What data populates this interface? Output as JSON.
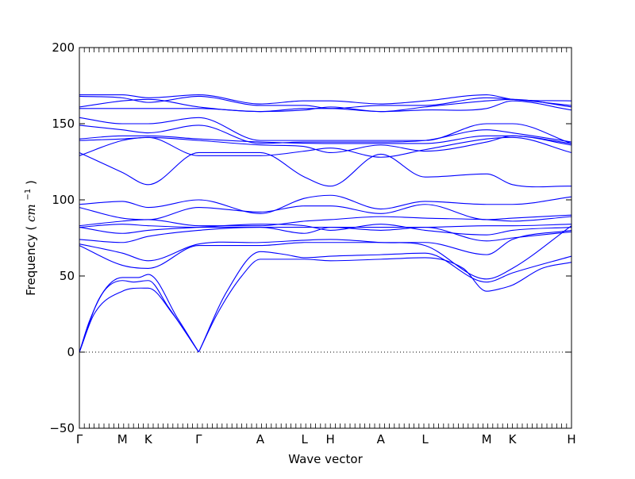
{
  "chart_data": {
    "type": "line",
    "title": "",
    "xlabel": "Wave vector",
    "ylabel": "Frequency",
    "ylabel_unit": "cm",
    "ylabel_unit_exponent": "−1",
    "ylim": [
      -50,
      200
    ],
    "yticks": [
      -50,
      0,
      50,
      100,
      150,
      200
    ],
    "zero_line": "dotted",
    "grid": false,
    "legend": "none",
    "line_color": "#0000ff",
    "x_labels": [
      {
        "label": "Γ",
        "x": 0.0
      },
      {
        "label": "M",
        "x": 0.0875
      },
      {
        "label": "K",
        "x": 0.14
      },
      {
        "label": "Γ",
        "x": 0.2425
      },
      {
        "label": "A",
        "x": 0.3675
      },
      {
        "label": "L",
        "x": 0.4575
      },
      {
        "label": "H",
        "x": 0.51
      },
      {
        "label": "A",
        "x": 0.6125
      },
      {
        "label": "L",
        "x": 0.7025
      },
      {
        "label": "M",
        "x": 0.8275
      },
      {
        "label": "K",
        "x": 0.88
      },
      {
        "label": "H",
        "x": 1.0
      }
    ],
    "series": [
      {
        "values": [
          [
            0,
            0
          ],
          [
            0.02,
            20
          ],
          [
            0.05,
            40
          ],
          [
            0.0875,
            47
          ],
          [
            0.11,
            46
          ],
          [
            0.14,
            47
          ],
          [
            0.18,
            30
          ],
          [
            0.2425,
            0
          ]
        ]
      },
      {
        "values": [
          [
            0,
            0
          ],
          [
            0.03,
            25
          ],
          [
            0.0875,
            40
          ],
          [
            0.14,
            42
          ],
          [
            0.19,
            25
          ],
          [
            0.2425,
            0
          ]
        ]
      },
      {
        "values": [
          [
            0,
            0
          ],
          [
            0.04,
            35
          ],
          [
            0.0875,
            49
          ],
          [
            0.12,
            49
          ],
          [
            0.14,
            51
          ],
          [
            0.2,
            22
          ],
          [
            0.2425,
            0
          ]
        ]
      },
      {
        "values": [
          [
            0.2425,
            0
          ],
          [
            0.28,
            25
          ],
          [
            0.33,
            50
          ],
          [
            0.3675,
            61
          ],
          [
            0.4575,
            61
          ],
          [
            0.51,
            60
          ],
          [
            0.6125,
            61
          ],
          [
            0.7025,
            62
          ],
          [
            0.78,
            55
          ],
          [
            0.8275,
            40
          ],
          [
            0.86,
            42
          ],
          [
            0.88,
            44
          ],
          [
            0.94,
            55
          ],
          [
            1.0,
            59
          ]
        ]
      },
      {
        "values": [
          [
            0.2425,
            0
          ],
          [
            0.3,
            40
          ],
          [
            0.3675,
            66
          ],
          [
            0.42,
            64
          ],
          [
            0.4575,
            62
          ],
          [
            0.51,
            63
          ],
          [
            0.6125,
            64
          ],
          [
            0.7025,
            65
          ],
          [
            0.8275,
            46
          ],
          [
            0.88,
            52
          ],
          [
            1.0,
            63
          ]
        ]
      },
      {
        "values": [
          [
            0,
            70
          ],
          [
            0.0875,
            57
          ],
          [
            0.14,
            55
          ],
          [
            0.2425,
            70
          ],
          [
            0.3675,
            70
          ],
          [
            0.4575,
            72
          ],
          [
            0.51,
            72
          ],
          [
            0.6125,
            72
          ],
          [
            0.7025,
            72
          ],
          [
            0.8275,
            64
          ],
          [
            0.88,
            74
          ],
          [
            1.0,
            80
          ]
        ]
      },
      {
        "values": [
          [
            0,
            71
          ],
          [
            0.0875,
            65
          ],
          [
            0.14,
            60
          ],
          [
            0.2425,
            71
          ],
          [
            0.3675,
            72
          ],
          [
            0.51,
            74
          ],
          [
            0.6125,
            72
          ],
          [
            0.7025,
            70
          ],
          [
            0.8275,
            48
          ],
          [
            0.88,
            55
          ],
          [
            1.0,
            83
          ]
        ]
      },
      {
        "values": [
          [
            0,
            74
          ],
          [
            0.0875,
            72
          ],
          [
            0.14,
            76
          ],
          [
            0.2425,
            80
          ],
          [
            0.3675,
            82
          ],
          [
            0.4575,
            78
          ],
          [
            0.51,
            82
          ],
          [
            0.6125,
            80
          ],
          [
            0.7025,
            82
          ],
          [
            0.8275,
            73
          ],
          [
            0.88,
            75
          ],
          [
            1.0,
            79
          ]
        ]
      },
      {
        "values": [
          [
            0,
            82
          ],
          [
            0.0875,
            78
          ],
          [
            0.14,
            80
          ],
          [
            0.2425,
            82
          ],
          [
            0.3675,
            84
          ],
          [
            0.4575,
            83
          ],
          [
            0.51,
            80
          ],
          [
            0.6125,
            84
          ],
          [
            0.7025,
            80
          ],
          [
            0.8275,
            77
          ],
          [
            0.88,
            80
          ],
          [
            1.0,
            82
          ]
        ]
      },
      {
        "values": [
          [
            0,
            82
          ],
          [
            0.0875,
            84
          ],
          [
            0.14,
            83
          ],
          [
            0.2425,
            82
          ],
          [
            0.3675,
            82
          ],
          [
            0.51,
            82
          ],
          [
            0.6125,
            82
          ],
          [
            0.7025,
            82
          ],
          [
            0.8275,
            83
          ],
          [
            0.88,
            83
          ],
          [
            1.0,
            84
          ]
        ]
      },
      {
        "values": [
          [
            0,
            83
          ],
          [
            0.0875,
            86
          ],
          [
            0.14,
            87
          ],
          [
            0.2425,
            83
          ],
          [
            0.3675,
            83
          ],
          [
            0.4575,
            86
          ],
          [
            0.51,
            87
          ],
          [
            0.6125,
            89
          ],
          [
            0.7025,
            88
          ],
          [
            0.8275,
            87
          ],
          [
            0.88,
            86
          ],
          [
            1.0,
            89
          ]
        ]
      },
      {
        "values": [
          [
            0,
            95
          ],
          [
            0.0875,
            88
          ],
          [
            0.14,
            87
          ],
          [
            0.2425,
            95
          ],
          [
            0.3675,
            92
          ],
          [
            0.4575,
            96
          ],
          [
            0.51,
            96
          ],
          [
            0.6125,
            91
          ],
          [
            0.7025,
            97
          ],
          [
            0.8275,
            87
          ],
          [
            0.88,
            88
          ],
          [
            1.0,
            90
          ]
        ]
      },
      {
        "values": [
          [
            0,
            97
          ],
          [
            0.0875,
            99
          ],
          [
            0.14,
            95
          ],
          [
            0.2425,
            100
          ],
          [
            0.3675,
            91
          ],
          [
            0.4575,
            101
          ],
          [
            0.51,
            103
          ],
          [
            0.6125,
            94
          ],
          [
            0.7025,
            99
          ],
          [
            0.8275,
            97
          ],
          [
            0.88,
            97
          ],
          [
            1.0,
            102
          ]
        ]
      },
      {
        "values": [
          [
            0,
            131
          ],
          [
            0.0875,
            118
          ],
          [
            0.14,
            110
          ],
          [
            0.2425,
            131
          ],
          [
            0.3675,
            131
          ],
          [
            0.4575,
            115
          ],
          [
            0.51,
            109
          ],
          [
            0.6125,
            130
          ],
          [
            0.7025,
            115
          ],
          [
            0.8275,
            117
          ],
          [
            0.88,
            110
          ],
          [
            1.0,
            109
          ]
        ]
      },
      {
        "values": [
          [
            0,
            129
          ],
          [
            0.0875,
            139
          ],
          [
            0.14,
            141
          ],
          [
            0.2425,
            129
          ],
          [
            0.3675,
            129
          ],
          [
            0.4575,
            132
          ],
          [
            0.51,
            134
          ],
          [
            0.6125,
            128
          ],
          [
            0.7025,
            133
          ],
          [
            0.8275,
            140
          ],
          [
            0.88,
            141
          ],
          [
            1.0,
            131
          ]
        ]
      },
      {
        "values": [
          [
            0,
            139
          ],
          [
            0.0875,
            140
          ],
          [
            0.14,
            141
          ],
          [
            0.2425,
            139
          ],
          [
            0.3675,
            136
          ],
          [
            0.4575,
            135
          ],
          [
            0.51,
            131
          ],
          [
            0.6125,
            136
          ],
          [
            0.7025,
            132
          ],
          [
            0.8275,
            138
          ],
          [
            0.88,
            142
          ],
          [
            1.0,
            136
          ]
        ]
      },
      {
        "values": [
          [
            0,
            140
          ],
          [
            0.0875,
            142
          ],
          [
            0.14,
            142
          ],
          [
            0.2425,
            140
          ],
          [
            0.3675,
            138
          ],
          [
            0.51,
            137
          ],
          [
            0.6125,
            137
          ],
          [
            0.7025,
            137
          ],
          [
            0.8275,
            142
          ],
          [
            0.88,
            142
          ],
          [
            1.0,
            137
          ]
        ]
      },
      {
        "values": [
          [
            0,
            149
          ],
          [
            0.0875,
            146
          ],
          [
            0.14,
            144
          ],
          [
            0.2425,
            149
          ],
          [
            0.3675,
            137
          ],
          [
            0.4575,
            138
          ],
          [
            0.51,
            138
          ],
          [
            0.6125,
            138
          ],
          [
            0.7025,
            139
          ],
          [
            0.8275,
            146
          ],
          [
            0.88,
            144
          ],
          [
            1.0,
            138
          ]
        ]
      },
      {
        "values": [
          [
            0,
            154
          ],
          [
            0.0875,
            150
          ],
          [
            0.14,
            150
          ],
          [
            0.2425,
            154
          ],
          [
            0.3675,
            139
          ],
          [
            0.4575,
            139
          ],
          [
            0.51,
            139
          ],
          [
            0.6125,
            139
          ],
          [
            0.7025,
            139
          ],
          [
            0.8275,
            150
          ],
          [
            0.88,
            150
          ],
          [
            1.0,
            137
          ]
        ]
      },
      {
        "values": [
          [
            0,
            160
          ],
          [
            0.0875,
            160
          ],
          [
            0.14,
            160
          ],
          [
            0.2425,
            160
          ],
          [
            0.3675,
            158
          ],
          [
            0.4575,
            160
          ],
          [
            0.51,
            160
          ],
          [
            0.6125,
            158
          ],
          [
            0.7025,
            159
          ],
          [
            0.8275,
            160
          ],
          [
            0.88,
            165
          ],
          [
            1.0,
            159
          ]
        ]
      },
      {
        "values": [
          [
            0,
            161
          ],
          [
            0.0875,
            165
          ],
          [
            0.14,
            166
          ],
          [
            0.2425,
            161
          ],
          [
            0.3675,
            158
          ],
          [
            0.4575,
            159
          ],
          [
            0.51,
            161
          ],
          [
            0.6125,
            158
          ],
          [
            0.7025,
            161
          ],
          [
            0.8275,
            165
          ],
          [
            0.88,
            166
          ],
          [
            1.0,
            161
          ]
        ]
      },
      {
        "values": [
          [
            0,
            168
          ],
          [
            0.0875,
            167
          ],
          [
            0.14,
            164
          ],
          [
            0.2425,
            168
          ],
          [
            0.3675,
            162
          ],
          [
            0.4575,
            162
          ],
          [
            0.51,
            160
          ],
          [
            0.6125,
            162
          ],
          [
            0.7025,
            162
          ],
          [
            0.8275,
            167
          ],
          [
            0.88,
            166
          ],
          [
            1.0,
            162
          ]
        ]
      },
      {
        "values": [
          [
            0,
            169
          ],
          [
            0.0875,
            169
          ],
          [
            0.14,
            167
          ],
          [
            0.2425,
            169
          ],
          [
            0.3675,
            163
          ],
          [
            0.4575,
            165
          ],
          [
            0.51,
            165
          ],
          [
            0.6125,
            163
          ],
          [
            0.7025,
            165
          ],
          [
            0.8275,
            169
          ],
          [
            0.88,
            166
          ],
          [
            1.0,
            165
          ]
        ]
      }
    ]
  }
}
